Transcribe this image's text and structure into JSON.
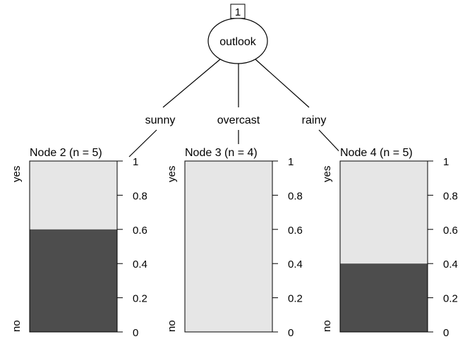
{
  "tree": {
    "root": {
      "id": "1",
      "variable": "outlook"
    },
    "branches": [
      "sunny",
      "overcast",
      "rainy"
    ],
    "leaves": [
      {
        "label": "Node 2 (n = 5)",
        "no_fraction": 0.6
      },
      {
        "label": "Node 3 (n = 4)",
        "no_fraction": 0.0
      },
      {
        "label": "Node 4 (n = 5)",
        "no_fraction": 0.4
      }
    ],
    "class_labels": {
      "top": "yes",
      "bottom": "no"
    },
    "axis_ticks": [
      "1",
      "0.8",
      "0.6",
      "0.4",
      "0.2",
      "0"
    ],
    "colors": {
      "no": "#4d4d4d",
      "yes": "#e6e6e6"
    }
  }
}
